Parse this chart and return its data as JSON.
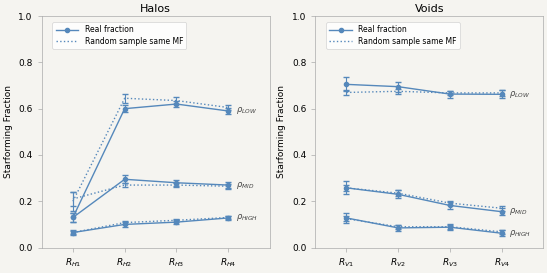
{
  "halos": {
    "title": "Halos",
    "xlabel_ticks": [
      "$R_{H1}$",
      "$R_{H2}$",
      "$R_{H3}$",
      "$R_{H4}$"
    ],
    "x": [
      0,
      1,
      2,
      3
    ],
    "low_real": [
      0.13,
      0.6,
      0.62,
      0.59
    ],
    "low_rand": [
      0.2,
      0.645,
      0.635,
      0.605
    ],
    "low_real_err": [
      0.02,
      0.015,
      0.012,
      0.012
    ],
    "low_rand_err": [
      0.04,
      0.02,
      0.015,
      0.01
    ],
    "mid_real": [
      0.13,
      0.295,
      0.28,
      0.27
    ],
    "mid_rand": [
      0.21,
      0.27,
      0.27,
      0.265
    ],
    "mid_real_err": [
      0.02,
      0.018,
      0.012,
      0.012
    ],
    "mid_rand_err": [
      0.03,
      0.01,
      0.01,
      0.01
    ],
    "high_real": [
      0.065,
      0.1,
      0.11,
      0.128
    ],
    "high_rand": [
      0.065,
      0.108,
      0.118,
      0.13
    ],
    "high_real_err": [
      0.01,
      0.012,
      0.01,
      0.01
    ],
    "high_rand_err": [
      0.005,
      0.008,
      0.006,
      0.006
    ],
    "label_low": "$\\rho_{LOW}$",
    "label_mid": "$\\rho_{MID}$",
    "label_high": "$\\rho_{HIGH}$"
  },
  "voids": {
    "title": "Voids",
    "xlabel_ticks": [
      "$R_{V1}$",
      "$R_{V2}$",
      "$R_{V3}$",
      "$R_{V4}$"
    ],
    "x": [
      0,
      1,
      2,
      3
    ],
    "low_real": [
      0.705,
      0.695,
      0.663,
      0.662
    ],
    "low_rand": [
      0.67,
      0.675,
      0.668,
      0.668
    ],
    "low_real_err": [
      0.03,
      0.022,
      0.015,
      0.018
    ],
    "low_rand_err": [
      0.01,
      0.01,
      0.01,
      0.012
    ],
    "mid_real": [
      0.258,
      0.23,
      0.182,
      0.155
    ],
    "mid_rand": [
      0.258,
      0.235,
      0.192,
      0.17
    ],
    "mid_real_err": [
      0.028,
      0.018,
      0.015,
      0.015
    ],
    "mid_rand_err": [
      0.012,
      0.012,
      0.01,
      0.01
    ],
    "high_real": [
      0.128,
      0.085,
      0.088,
      0.062
    ],
    "high_rand": [
      0.125,
      0.09,
      0.09,
      0.068
    ],
    "high_real_err": [
      0.022,
      0.014,
      0.014,
      0.012
    ],
    "high_rand_err": [
      0.01,
      0.008,
      0.008,
      0.008
    ],
    "label_low": "$\\rho_{LOW}$",
    "label_mid": "$\\rho_{MID}$",
    "label_high": "$\\rho_{HIGH}$"
  },
  "legend_real": "Real fraction",
  "legend_rand": "Random sample same MF",
  "ylabel": "Starforming Fraction",
  "ylim": [
    0.0,
    1.0
  ],
  "yticks": [
    0.0,
    0.2,
    0.4,
    0.6,
    0.8,
    1.0
  ],
  "line_color": "#5588bb",
  "bg_color": "#f5f4f0"
}
